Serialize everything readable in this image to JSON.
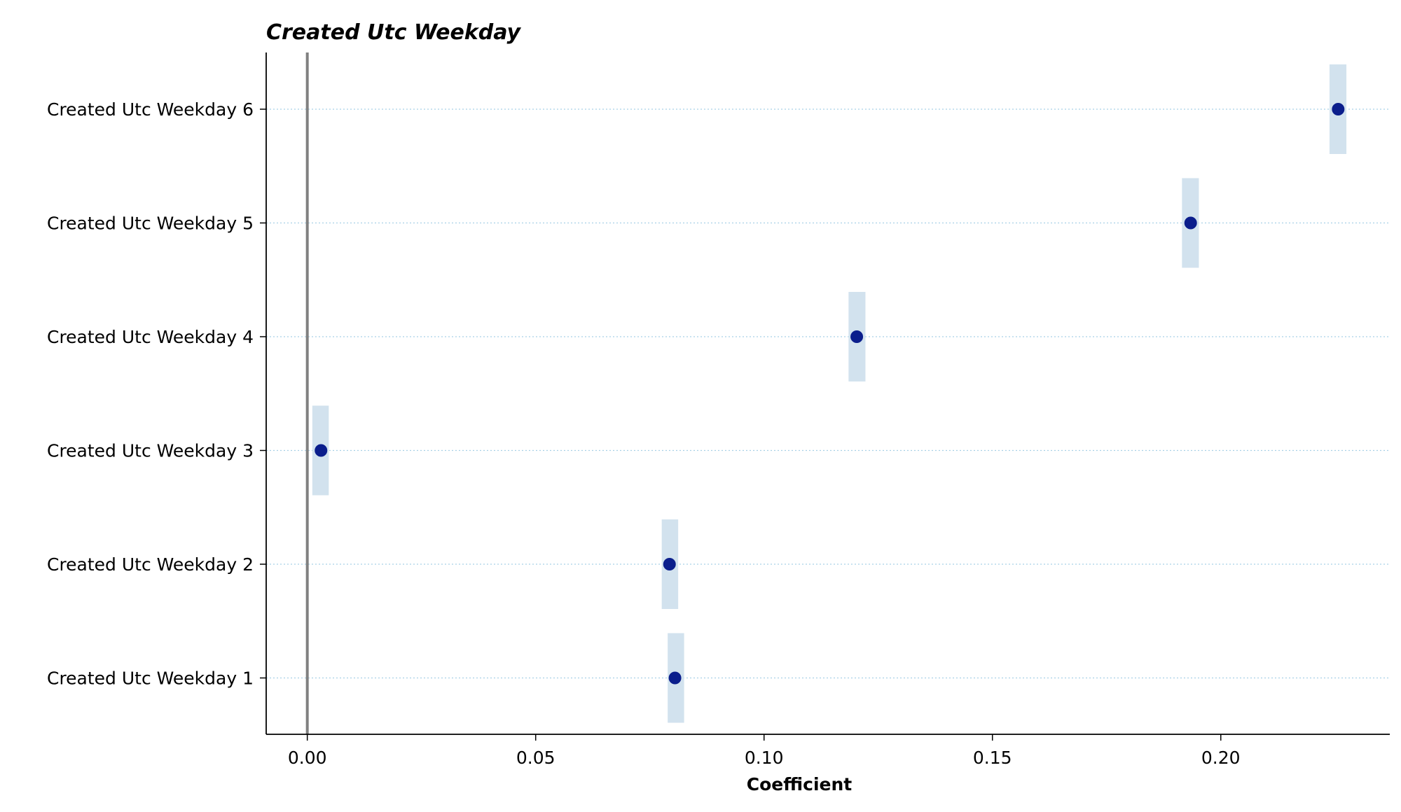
{
  "chart_data": {
    "type": "scatter",
    "title": "Created Utc Weekday",
    "xlabel": "Coefficient",
    "ylabel": "",
    "xlim": [
      -0.009,
      0.237
    ],
    "x_ticks": [
      0.0,
      0.05,
      0.1,
      0.15,
      0.2
    ],
    "x_tick_labels": [
      "0.00",
      "0.05",
      "0.10",
      "0.15",
      "0.20"
    ],
    "reference_line_x": 0.0,
    "grid": "horizontal dotted",
    "categories": [
      "Created Utc Weekday 1",
      "Created Utc Weekday 2",
      "Created Utc Weekday 3",
      "Created Utc Weekday 4",
      "Created Utc Weekday 5",
      "Created Utc Weekday 6"
    ],
    "values": [
      0.0805,
      0.0793,
      0.003,
      0.1203,
      0.1934,
      0.2257
    ],
    "ci_low": [
      0.0789,
      0.0776,
      0.0011,
      0.1185,
      0.1915,
      0.2238
    ],
    "ci_high": [
      0.0825,
      0.0812,
      0.0047,
      0.1222,
      0.1952,
      0.2275
    ],
    "colors": {
      "point": "#0b1e8c",
      "interval": "#d2e2ee",
      "reference_line": "#808080",
      "grid": "#a8d0e6",
      "axis": "#000000"
    }
  }
}
